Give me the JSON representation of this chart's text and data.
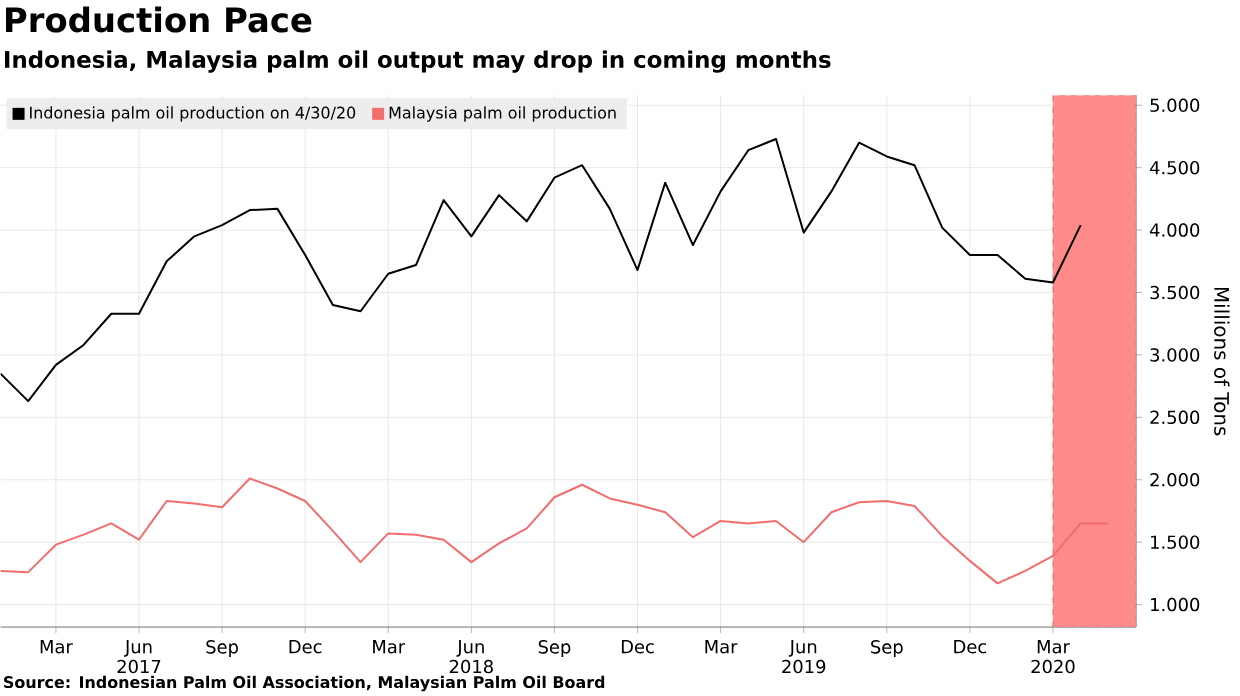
{
  "chart_data": {
    "type": "line",
    "title": "Production Pace",
    "subtitle": "Indonesia, Malaysia palm oil output may drop in coming months",
    "ylabel": "Millions of Tons",
    "x": [
      "2017-01",
      "2017-02",
      "2017-03",
      "2017-04",
      "2017-05",
      "2017-06",
      "2017-07",
      "2017-08",
      "2017-09",
      "2017-10",
      "2017-11",
      "2017-12",
      "2018-01",
      "2018-02",
      "2018-03",
      "2018-04",
      "2018-05",
      "2018-06",
      "2018-07",
      "2018-08",
      "2018-09",
      "2018-10",
      "2018-11",
      "2018-12",
      "2019-01",
      "2019-02",
      "2019-03",
      "2019-04",
      "2019-05",
      "2019-06",
      "2019-07",
      "2019-08",
      "2019-09",
      "2019-10",
      "2019-11",
      "2019-12",
      "2020-01",
      "2020-02",
      "2020-03",
      "2020-04",
      "2020-05"
    ],
    "series": [
      {
        "name": "Indonesia palm oil production on 4/30/20",
        "color": "#000000",
        "values": [
          2.85,
          2.63,
          2.92,
          3.08,
          3.33,
          3.33,
          3.75,
          3.95,
          4.04,
          4.16,
          4.17,
          3.8,
          3.4,
          3.35,
          3.65,
          3.72,
          4.24,
          3.95,
          4.28,
          4.07,
          4.42,
          4.52,
          4.17,
          3.68,
          4.38,
          3.88,
          4.31,
          4.64,
          4.73,
          3.98,
          4.31,
          4.7,
          4.59,
          4.52,
          4.02,
          3.8,
          3.8,
          3.61,
          3.58,
          4.04,
          null
        ]
      },
      {
        "name": "Malaysia palm oil production",
        "color": "#f26d6d",
        "values": [
          1.27,
          1.26,
          1.48,
          1.56,
          1.65,
          1.52,
          1.83,
          1.81,
          1.78,
          2.01,
          1.93,
          1.83,
          1.59,
          1.34,
          1.57,
          1.56,
          1.52,
          1.34,
          1.49,
          1.61,
          1.86,
          1.96,
          1.85,
          1.8,
          1.74,
          1.54,
          1.67,
          1.65,
          1.67,
          1.5,
          1.74,
          1.82,
          1.83,
          1.79,
          1.55,
          1.35,
          1.17,
          1.27,
          1.39,
          1.65,
          1.65
        ]
      }
    ],
    "xlim": [
      "2017-01",
      "2020-06"
    ],
    "ylim": [
      0.82,
      5.08
    ],
    "xticks": [
      {
        "value": "2017-03",
        "label": "Mar"
      },
      {
        "value": "2017-06",
        "label": "Jun 2017"
      },
      {
        "value": "2017-09",
        "label": "Sep"
      },
      {
        "value": "2017-12",
        "label": "Dec"
      },
      {
        "value": "2018-03",
        "label": "Mar"
      },
      {
        "value": "2018-06",
        "label": "Jun 2018"
      },
      {
        "value": "2018-09",
        "label": "Sep"
      },
      {
        "value": "2018-12",
        "label": "Dec"
      },
      {
        "value": "2019-03",
        "label": "Mar"
      },
      {
        "value": "2019-06",
        "label": "Jun 2019"
      },
      {
        "value": "2019-09",
        "label": "Sep"
      },
      {
        "value": "2019-12",
        "label": "Dec"
      },
      {
        "value": "2020-03",
        "label": "Mar 2020"
      }
    ],
    "yticks": [
      {
        "value": 1,
        "label": "1.000"
      },
      {
        "value": 1.5,
        "label": "1.500"
      },
      {
        "value": 2,
        "label": "2.000"
      },
      {
        "value": 2.5,
        "label": "2.500"
      },
      {
        "value": 3,
        "label": "3.000"
      },
      {
        "value": 3.5,
        "label": "3.500"
      },
      {
        "value": 4,
        "label": "4.000"
      },
      {
        "value": 4.5,
        "label": "4.500"
      },
      {
        "value": 5,
        "label": "5.000"
      }
    ],
    "bands": [
      {
        "axis": "x",
        "from": "2020-03",
        "to": "2020-06",
        "color": "#ff8a8a"
      }
    ],
    "grid": true,
    "legend": "top left",
    "marker": "none",
    "line_style": "solid",
    "annotations": [
      "Source: Indonesian Palm Oil Association, Malaysian Palm Oil Board"
    ]
  }
}
